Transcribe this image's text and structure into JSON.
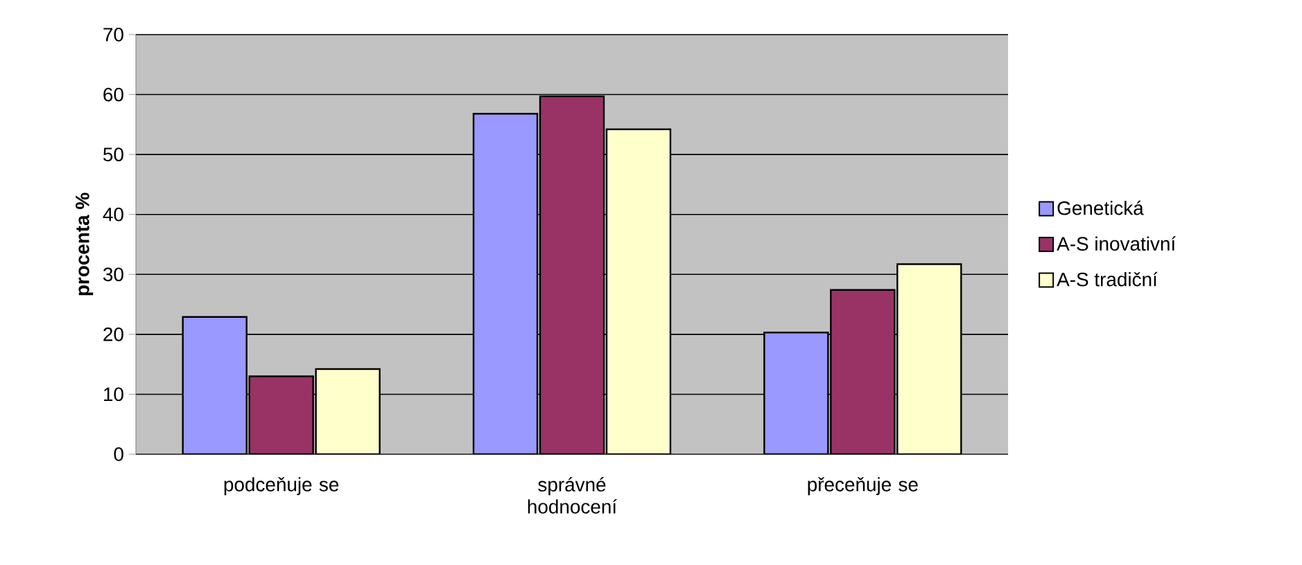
{
  "chart_data": {
    "type": "bar",
    "ylabel": "procenta %",
    "categories": [
      "podceňuje se",
      "správné hodnocení",
      "přeceňuje se"
    ],
    "series": [
      {
        "name": "Genetická",
        "color": "#9999ff",
        "values": [
          22.9,
          56.8,
          20.3
        ]
      },
      {
        "name": "A-S inovativní",
        "color": "#993366",
        "values": [
          13,
          59.7,
          27.4
        ]
      },
      {
        "name": "A-S tradiční",
        "color": "#ffffcc",
        "values": [
          14.2,
          54.2,
          31.7
        ]
      }
    ],
    "ylim": [
      0,
      70
    ],
    "yticks": [
      0,
      10,
      20,
      30,
      40,
      50,
      60,
      70
    ],
    "grid": "y",
    "legend": "right"
  }
}
